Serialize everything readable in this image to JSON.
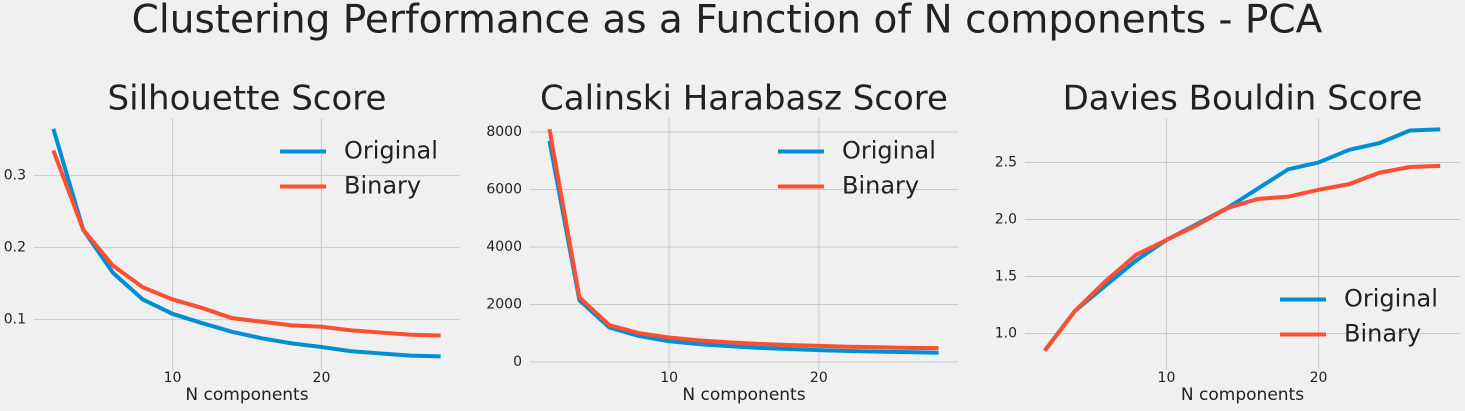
{
  "title": "Clustering Performance as a Function of N components - PCA",
  "chart_data": [
    {
      "type": "line",
      "title": "Silhouette Score",
      "xlabel": "N components",
      "x": [
        2,
        4,
        6,
        8,
        10,
        12,
        14,
        16,
        18,
        20,
        22,
        24,
        26,
        28
      ],
      "series": [
        {
          "name": "Original",
          "color": "#008fd5",
          "values": [
            0.365,
            0.225,
            0.165,
            0.128,
            0.108,
            0.095,
            0.083,
            0.074,
            0.067,
            0.062,
            0.056,
            0.053,
            0.05,
            0.049
          ]
        },
        {
          "name": "Binary",
          "color": "#fc4f30",
          "values": [
            0.335,
            0.225,
            0.175,
            0.145,
            0.128,
            0.116,
            0.102,
            0.097,
            0.092,
            0.09,
            0.085,
            0.082,
            0.079,
            0.078
          ]
        }
      ],
      "xlim": [
        0.7,
        29.3
      ],
      "xticks": [
        10,
        20
      ],
      "ylim": [
        0.03,
        0.38
      ],
      "yticks": [
        0.1,
        0.2,
        0.3
      ],
      "grid": true,
      "legend": "upper right"
    },
    {
      "type": "line",
      "title": "Calinski Harabasz Score",
      "xlabel": "N components",
      "x": [
        2,
        4,
        6,
        8,
        10,
        12,
        14,
        16,
        18,
        20,
        22,
        24,
        26,
        28
      ],
      "series": [
        {
          "name": "Original",
          "color": "#008fd5",
          "values": [
            7700,
            2150,
            1200,
            900,
            720,
            620,
            550,
            490,
            450,
            410,
            380,
            360,
            340,
            320
          ]
        },
        {
          "name": "Binary",
          "color": "#fc4f30",
          "values": [
            8100,
            2250,
            1280,
            1000,
            850,
            750,
            680,
            630,
            590,
            560,
            530,
            510,
            490,
            480
          ]
        }
      ],
      "xlim": [
        0.7,
        29.3
      ],
      "xticks": [
        10,
        20
      ],
      "ylim": [
        -280,
        8490
      ],
      "yticks": [
        0,
        2000,
        4000,
        6000,
        8000
      ],
      "grid": true,
      "legend": "upper right"
    },
    {
      "type": "line",
      "title": "Davies Bouldin Score",
      "xlabel": "N components",
      "x": [
        2,
        4,
        6,
        8,
        10,
        12,
        14,
        16,
        18,
        20,
        22,
        24,
        26,
        28
      ],
      "series": [
        {
          "name": "Original",
          "color": "#008fd5",
          "values": [
            0.85,
            1.2,
            1.42,
            1.64,
            1.82,
            1.96,
            2.1,
            2.27,
            2.44,
            2.5,
            2.61,
            2.67,
            2.78,
            2.79
          ]
        },
        {
          "name": "Binary",
          "color": "#fc4f30",
          "values": [
            0.85,
            1.2,
            1.46,
            1.69,
            1.82,
            1.95,
            2.1,
            2.18,
            2.2,
            2.26,
            2.31,
            2.41,
            2.46,
            2.47
          ]
        }
      ],
      "xlim": [
        0.7,
        29.3
      ],
      "xticks": [
        10,
        20
      ],
      "ylim": [
        0.68,
        2.89
      ],
      "yticks": [
        {
          "value": 1,
          "label": "1.0"
        },
        1.5,
        {
          "value": 2,
          "label": "2.0"
        },
        2.5
      ],
      "grid": true,
      "legend": "lower right"
    }
  ]
}
